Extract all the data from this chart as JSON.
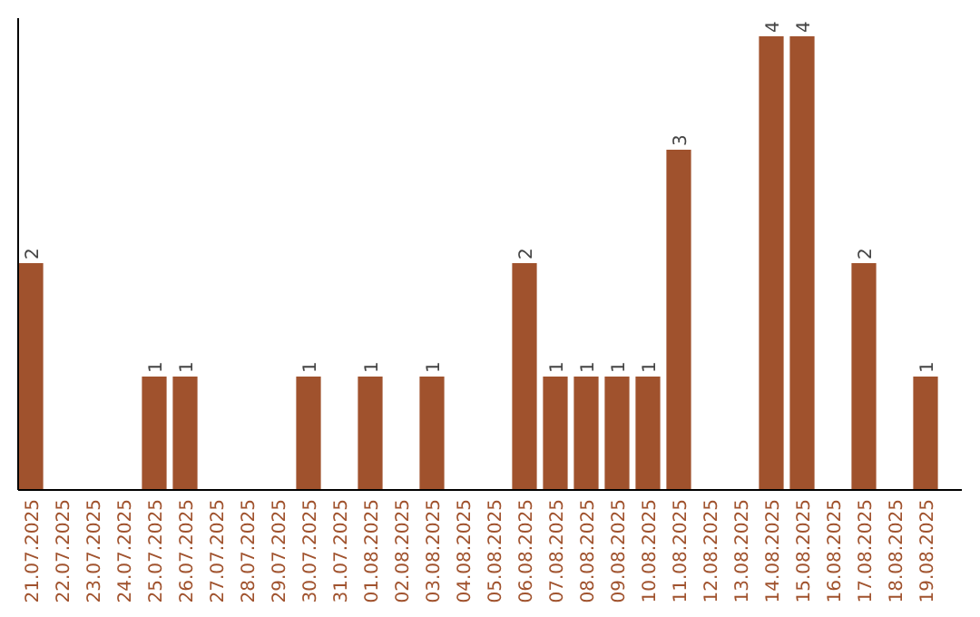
{
  "chart_data": {
    "type": "bar",
    "categories": [
      "21.07.2025",
      "22.07.2025",
      "23.07.2025",
      "24.07.2025",
      "25.07.2025",
      "26.07.2025",
      "27.07.2025",
      "28.07.2025",
      "29.07.2025",
      "30.07.2025",
      "31.07.2025",
      "01.08.2025",
      "02.08.2025",
      "03.08.2025",
      "04.08.2025",
      "05.08.2025",
      "06.08.2025",
      "07.08.2025",
      "08.08.2025",
      "09.08.2025",
      "10.08.2025",
      "11.08.2025",
      "12.08.2025",
      "13.08.2025",
      "14.08.2025",
      "15.08.2025",
      "16.08.2025",
      "17.08.2025",
      "18.08.2025",
      "19.08.2025"
    ],
    "values": [
      2,
      0,
      0,
      0,
      1,
      1,
      0,
      0,
      0,
      1,
      0,
      1,
      0,
      1,
      0,
      0,
      2,
      1,
      1,
      1,
      1,
      3,
      0,
      0,
      4,
      4,
      0,
      2,
      0,
      1
    ],
    "value_labels": [
      "2",
      null,
      null,
      null,
      "1",
      "1",
      null,
      null,
      null,
      "1",
      null,
      "1",
      null,
      "1",
      null,
      null,
      "2",
      "1",
      "1",
      "1",
      "1",
      "3",
      null,
      null,
      "4",
      "4",
      null,
      "2",
      null,
      "1"
    ],
    "color": "#a0522d",
    "tick_labels": "x"
  }
}
